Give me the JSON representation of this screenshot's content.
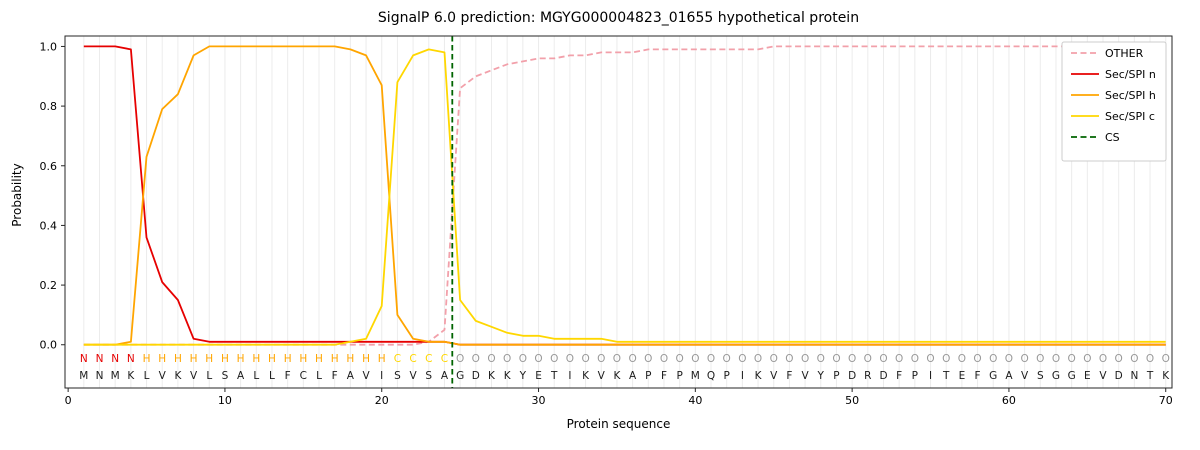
{
  "chart_data": {
    "type": "line",
    "title": "SignalP 6.0 prediction: MGYG000004823_01655 hypothetical protein",
    "xlabel": "Protein sequence",
    "ylabel": "Probability",
    "xlim": [
      -0.2,
      70.4
    ],
    "ylim": [
      -0.145,
      1.035
    ],
    "xticks": [
      0,
      10,
      20,
      30,
      40,
      50,
      60,
      70
    ],
    "yticks": [
      0.0,
      0.2,
      0.4,
      0.6,
      0.8,
      1.0
    ],
    "grid": "vertical line per residue, light gray",
    "legend_position": "upper right",
    "x": [
      1,
      2,
      3,
      4,
      5,
      6,
      7,
      8,
      9,
      10,
      11,
      12,
      13,
      14,
      15,
      16,
      17,
      18,
      19,
      20,
      21,
      22,
      23,
      24,
      25,
      26,
      27,
      28,
      29,
      30,
      31,
      32,
      33,
      34,
      35,
      36,
      37,
      38,
      39,
      40,
      41,
      42,
      43,
      44,
      45,
      46,
      47,
      48,
      49,
      50,
      51,
      52,
      53,
      54,
      55,
      56,
      57,
      58,
      59,
      60,
      61,
      62,
      63,
      64,
      65,
      66,
      67,
      68,
      69,
      70
    ],
    "series": [
      {
        "name": "OTHER",
        "color": "#f2a0aa",
        "dash": true,
        "values": [
          0,
          0,
          0,
          0,
          0,
          0,
          0,
          0,
          0,
          0,
          0,
          0,
          0,
          0,
          0,
          0,
          0,
          0,
          0,
          0,
          0,
          0,
          0.01,
          0.05,
          0.86,
          0.9,
          0.92,
          0.94,
          0.95,
          0.96,
          0.96,
          0.97,
          0.97,
          0.98,
          0.98,
          0.98,
          0.99,
          0.99,
          0.99,
          0.99,
          0.99,
          0.99,
          0.99,
          0.99,
          1,
          1,
          1,
          1,
          1,
          1,
          1,
          1,
          1,
          1,
          1,
          1,
          1,
          1,
          1,
          1,
          1,
          1,
          1,
          1,
          1,
          1,
          1,
          1,
          1,
          1
        ]
      },
      {
        "name": "Sec/SPI n",
        "color": "#e60000",
        "dash": false,
        "values": [
          1,
          1,
          1,
          0.99,
          0.36,
          0.21,
          0.15,
          0.02,
          0.01,
          0.01,
          0.01,
          0.01,
          0.01,
          0.01,
          0.01,
          0.01,
          0.01,
          0.01,
          0.01,
          0.01,
          0.01,
          0.01,
          0.01,
          0.01,
          0,
          0,
          0,
          0,
          0,
          0,
          0,
          0,
          0,
          0,
          0,
          0,
          0,
          0,
          0,
          0,
          0,
          0,
          0,
          0,
          0,
          0,
          0,
          0,
          0,
          0,
          0,
          0,
          0,
          0,
          0,
          0,
          0,
          0,
          0,
          0,
          0,
          0,
          0,
          0,
          0,
          0,
          0,
          0,
          0,
          0
        ]
      },
      {
        "name": "Sec/SPI h",
        "color": "#ffa500",
        "dash": false,
        "values": [
          0,
          0,
          0,
          0.01,
          0.63,
          0.79,
          0.84,
          0.97,
          1,
          1,
          1,
          1,
          1,
          1,
          1,
          1,
          1,
          0.99,
          0.97,
          0.87,
          0.1,
          0.02,
          0.01,
          0.01,
          0,
          0,
          0,
          0,
          0,
          0,
          0,
          0,
          0,
          0,
          0,
          0,
          0,
          0,
          0,
          0,
          0,
          0,
          0,
          0,
          0,
          0,
          0,
          0,
          0,
          0,
          0,
          0,
          0,
          0,
          0,
          0,
          0,
          0,
          0,
          0,
          0,
          0,
          0,
          0,
          0,
          0,
          0,
          0,
          0,
          0
        ]
      },
      {
        "name": "Sec/SPI c",
        "color": "#ffd700",
        "dash": false,
        "values": [
          0,
          0,
          0,
          0,
          0,
          0,
          0,
          0,
          0,
          0,
          0,
          0,
          0,
          0,
          0,
          0,
          0,
          0.01,
          0.02,
          0.13,
          0.88,
          0.97,
          0.99,
          0.98,
          0.15,
          0.08,
          0.06,
          0.04,
          0.03,
          0.03,
          0.02,
          0.02,
          0.02,
          0.02,
          0.01,
          0.01,
          0.01,
          0.01,
          0.01,
          0.01,
          0.01,
          0.01,
          0.01,
          0.01,
          0.01,
          0.01,
          0.01,
          0.01,
          0.01,
          0.01,
          0.01,
          0.01,
          0.01,
          0.01,
          0.01,
          0.01,
          0.01,
          0.01,
          0.01,
          0.01,
          0.01,
          0.01,
          0.01,
          0.01,
          0.01,
          0.01,
          0.01,
          0.01,
          0.01,
          0.01
        ]
      }
    ],
    "cs_line": {
      "name": "CS",
      "x": 24.5,
      "color": "#006400",
      "dash": true
    },
    "sequence": "MNMKLVKVLSALLFCLFAVISVSAGDKKYETIKVKAPFPMQPIKVFVYPDRDFPITEFGAVSGGEVDNTK",
    "region_labels": "NNNNHHHHHHHHHHHHHHHHCCCCOOOOOOOOOOOOOOOOOOOOOOOOOOOOOOOOOOOOOOOOOOOOOO",
    "region_colors": {
      "N": "#e60000",
      "H": "#ffa500",
      "C": "#ffd700",
      "O": "#999999"
    },
    "sequence_color": "#1a1a1a",
    "frame_color": "#262626",
    "grid_color": "#ececec",
    "background": "#ffffff"
  }
}
